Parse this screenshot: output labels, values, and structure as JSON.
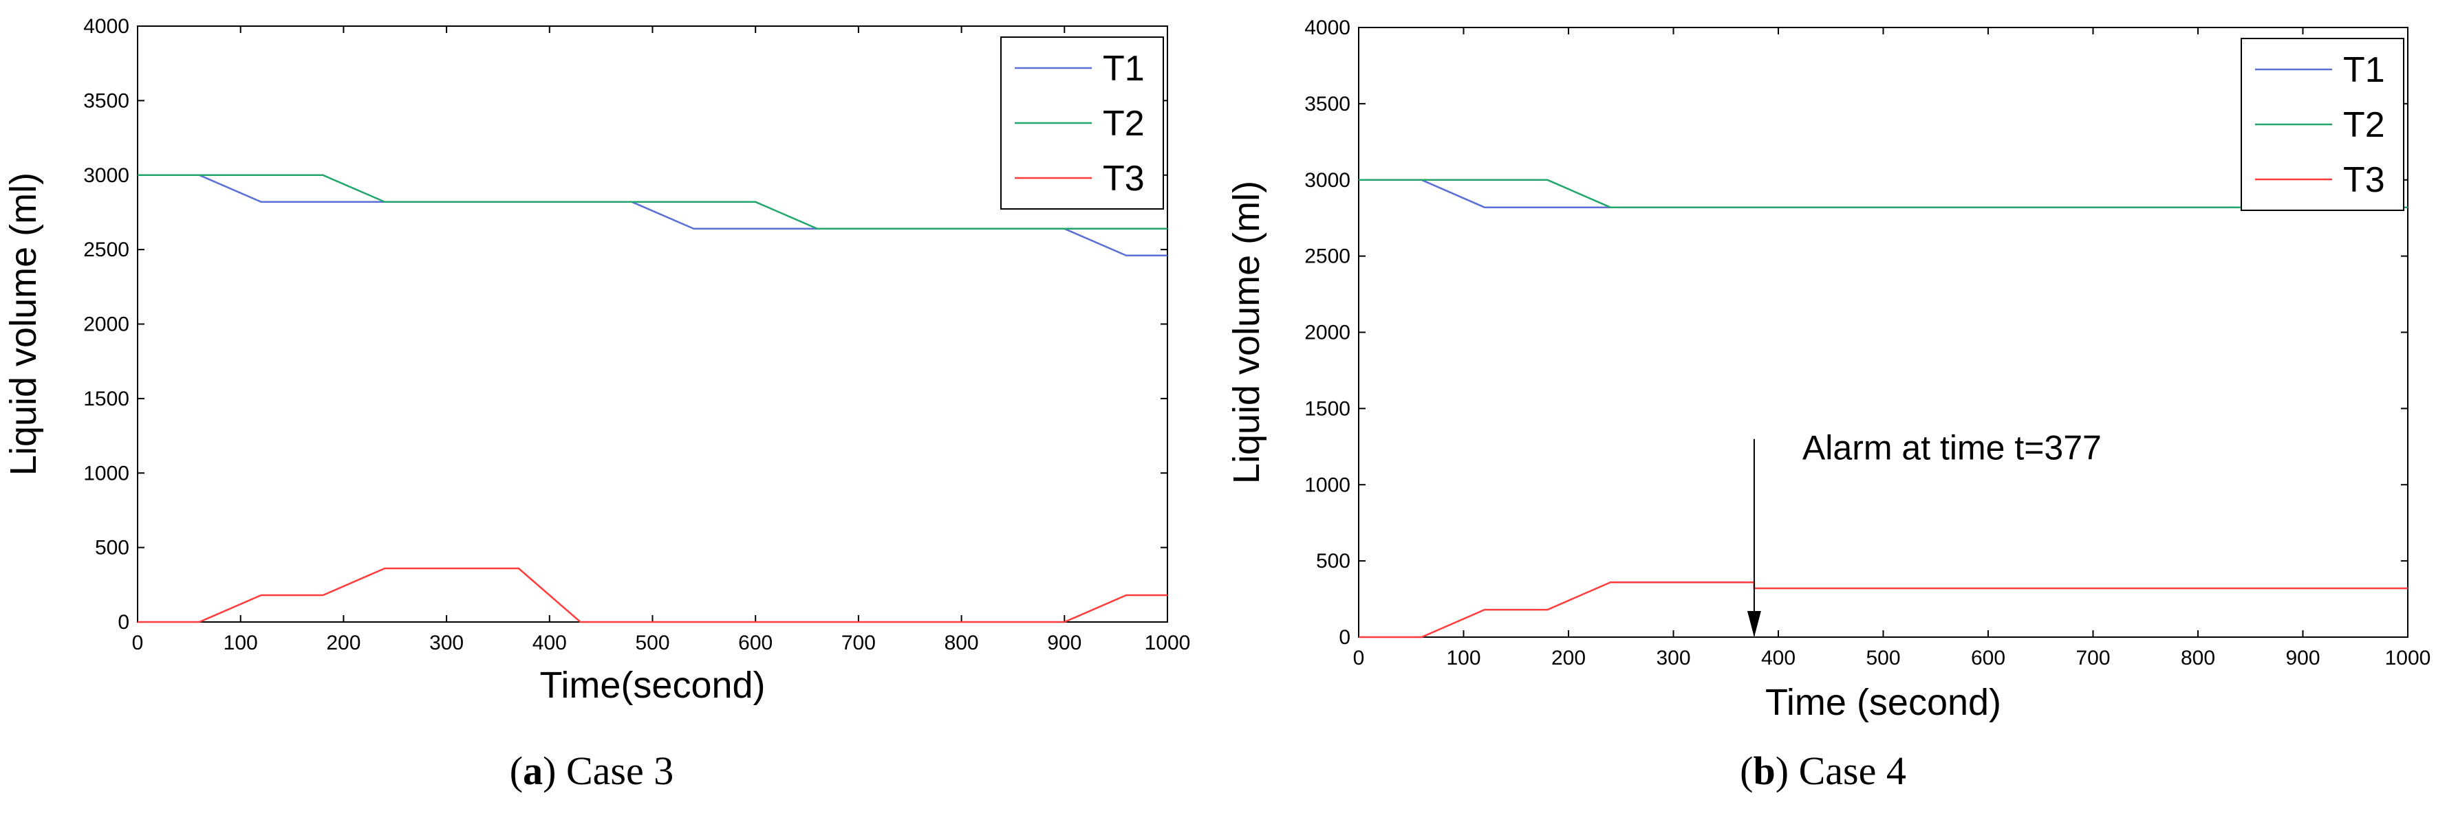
{
  "chart_data": [
    {
      "type": "line",
      "panel_label": "a",
      "caption": "Case 3",
      "xlabel": "Time(second)",
      "ylabel": "Liquid volume (ml)",
      "xlim": [
        0,
        1000
      ],
      "ylim": [
        0,
        4000
      ],
      "xticks": [
        0,
        100,
        200,
        300,
        400,
        500,
        600,
        700,
        800,
        900,
        1000
      ],
      "yticks": [
        0,
        500,
        1000,
        1500,
        2000,
        2500,
        3000,
        3500,
        4000
      ],
      "grid": false,
      "legend_position": "top-right",
      "series": [
        {
          "name": "T1",
          "color": "#5b6fd6",
          "points": [
            [
              0,
              3000
            ],
            [
              60,
              3000
            ],
            [
              120,
              2820
            ],
            [
              480,
              2820
            ],
            [
              540,
              2640
            ],
            [
              900,
              2640
            ],
            [
              960,
              2460
            ],
            [
              1000,
              2460
            ]
          ]
        },
        {
          "name": "T2",
          "color": "#23a66e",
          "points": [
            [
              0,
              3000
            ],
            [
              180,
              3000
            ],
            [
              240,
              2820
            ],
            [
              600,
              2820
            ],
            [
              660,
              2640
            ],
            [
              1000,
              2640
            ]
          ]
        },
        {
          "name": "T3",
          "color": "#ff3b3b",
          "points": [
            [
              0,
              0
            ],
            [
              60,
              0
            ],
            [
              120,
              180
            ],
            [
              180,
              180
            ],
            [
              240,
              360
            ],
            [
              370,
              360
            ],
            [
              430,
              0
            ],
            [
              900,
              0
            ],
            [
              960,
              180
            ],
            [
              1000,
              180
            ]
          ]
        }
      ]
    },
    {
      "type": "line",
      "panel_label": "b",
      "caption": "Case 4",
      "xlabel": "Time (second)",
      "ylabel": "Liquid volume (ml)",
      "xlim": [
        0,
        1000
      ],
      "ylim": [
        0,
        4000
      ],
      "xticks": [
        0,
        100,
        200,
        300,
        400,
        500,
        600,
        700,
        800,
        900,
        1000
      ],
      "yticks": [
        0,
        500,
        1000,
        1500,
        2000,
        2500,
        3000,
        3500,
        4000
      ],
      "grid": false,
      "legend_position": "top-right",
      "annotation": {
        "text": "Alarm at time t=377",
        "x": 377,
        "y_from": 1300,
        "y_to": 0
      },
      "series": [
        {
          "name": "T1",
          "color": "#5b6fd6",
          "points": [
            [
              0,
              3000
            ],
            [
              60,
              3000
            ],
            [
              120,
              2820
            ],
            [
              1000,
              2820
            ]
          ]
        },
        {
          "name": "T2",
          "color": "#23a66e",
          "points": [
            [
              0,
              3000
            ],
            [
              180,
              3000
            ],
            [
              240,
              2820
            ],
            [
              1000,
              2820
            ]
          ]
        },
        {
          "name": "T3",
          "color": "#ff3b3b",
          "points": [
            [
              0,
              0
            ],
            [
              60,
              0
            ],
            [
              120,
              180
            ],
            [
              180,
              180
            ],
            [
              240,
              360
            ],
            [
              377,
              360
            ],
            [
              377,
              320
            ],
            [
              1000,
              320
            ]
          ]
        }
      ]
    }
  ]
}
